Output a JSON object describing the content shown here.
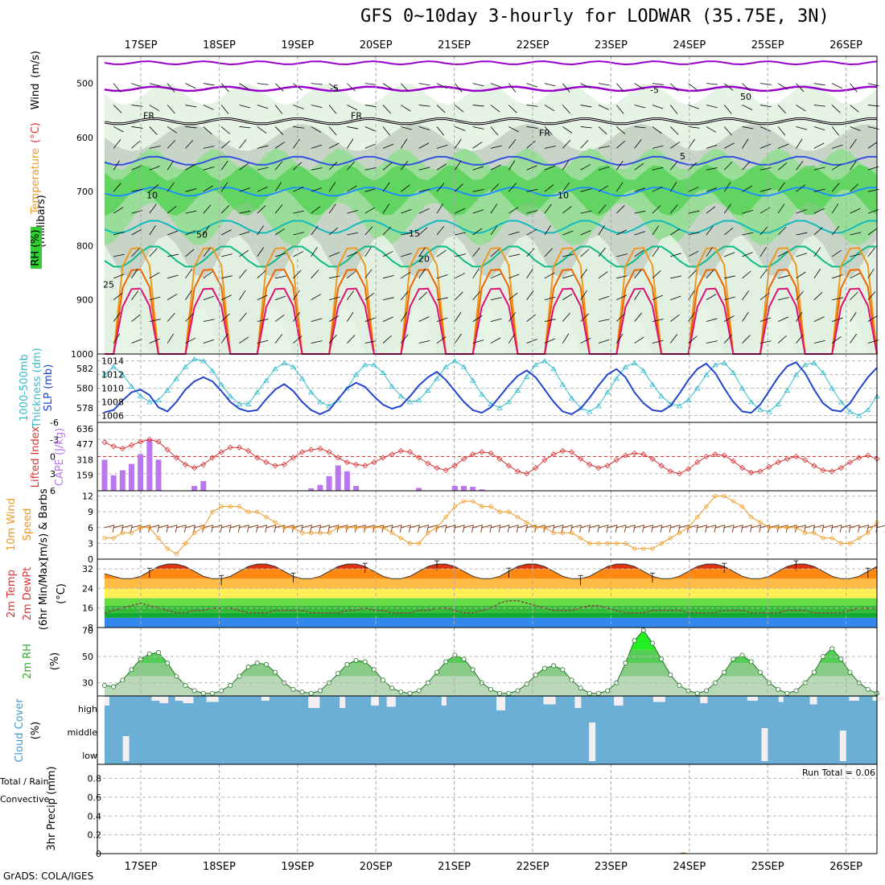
{
  "title": "GFS 0~10day 3-hourly for LODWAR (35.75E, 3N)",
  "credit": "GrADS: COLA/IGES",
  "dates": [
    "17SEP",
    "18SEP",
    "19SEP",
    "20SEP",
    "21SEP",
    "22SEP",
    "23SEP",
    "24SEP",
    "25SEP",
    "26SEP"
  ],
  "colors": {
    "rh_dark": "#33cc33",
    "rh_mid": "#99dd99",
    "rh_light": "#e6f4e6",
    "rh_grey": "#c8d4c8",
    "temp_neg": "#9900cc",
    "temp_5": "#3355dd",
    "temp_10": "#1e90ff",
    "temp_15": "#11bbbb",
    "temp_20": "#11bb88",
    "temp_25": "#ee9922",
    "temp_30": "#ee6600",
    "temp_35": "#dd1177",
    "slp": "#2244cc",
    "thickness": "#33bbcc",
    "li": "#dd3333",
    "cape": "#bb77ee",
    "wind": "#ee9922",
    "barb": "#884422",
    "cloud": "#6baed6",
    "rain": "#33cc33",
    "conv": "#dd3333"
  },
  "chart_data": [
    {
      "type": "heatmap",
      "panel": "upper-air",
      "caption_parts": [
        "RH (%)",
        "Temperature",
        "(°C)",
        "Wind",
        "(m/s)"
      ],
      "ylabel": "(millibars)",
      "ylim": [
        1000,
        450
      ],
      "yticks": [
        "500",
        "600",
        "700",
        "800",
        "900",
        "1000"
      ],
      "contour_labels": [
        "-5",
        "FR",
        "5",
        "10",
        "15",
        "20",
        "25",
        "50"
      ],
      "levels": {
        "minus5": 510,
        "freezing": 570,
        "t5": 643,
        "t10": 700,
        "t15": 765,
        "t20": 820,
        "t25_day": 855
      }
    },
    {
      "type": "line",
      "panel": "thickness-slp",
      "caption_left": "1000-500mb Thickness (dm)",
      "caption_right": "SLP (mb)",
      "left_ticks": [
        "582",
        "580",
        "578"
      ],
      "right_ticks": [
        "1014",
        "1012",
        "1010",
        "1008",
        "1006"
      ],
      "series": [
        {
          "name": "SLP (mb)",
          "values": [
            1006.5,
            1006.8,
            1008.2,
            1009.4,
            1009.8,
            1009.0,
            1007.2,
            1006.6,
            1008.0,
            1009.8,
            1011.0,
            1011.6,
            1011.0,
            1009.6,
            1008.0,
            1007.0,
            1006.6,
            1006.8,
            1008.4,
            1009.8,
            1010.6,
            1009.6,
            1008.0,
            1006.8,
            1006.2,
            1006.8,
            1008.4,
            1010.0,
            1010.8,
            1010.2,
            1008.8,
            1007.6,
            1007.0,
            1007.4,
            1008.8,
            1010.4,
            1011.6,
            1012.4,
            1011.2,
            1009.6,
            1008.0,
            1006.8,
            1006.4,
            1007.2,
            1008.8,
            1010.4,
            1011.8,
            1012.6,
            1011.6,
            1009.8,
            1008.0,
            1006.6,
            1006.2,
            1007.0,
            1008.6,
            1010.4,
            1012.0,
            1012.8,
            1011.6,
            1009.4,
            1007.8,
            1006.8,
            1006.6,
            1007.4,
            1009.2,
            1011.2,
            1012.8,
            1013.6,
            1012.2,
            1010.0,
            1008.0,
            1006.6,
            1006.4,
            1007.6,
            1009.6,
            1011.6,
            1013.2,
            1013.8,
            1012.2,
            1009.8,
            1007.8,
            1006.8,
            1006.6,
            1007.8,
            1009.8,
            1011.6,
            1013.0
          ]
        },
        {
          "name": "Thickness (dm)",
          "values": [
            581.4,
            582.2,
            581.4,
            580.2,
            579.2,
            578.6,
            578.8,
            579.8,
            581.0,
            582.2,
            583.0,
            582.8,
            581.8,
            580.4,
            579.2,
            578.4,
            578.4,
            579.6,
            580.8,
            582.0,
            582.6,
            582.2,
            581.0,
            579.6,
            578.6,
            578.2,
            578.8,
            580.0,
            581.4,
            582.4,
            582.4,
            581.6,
            580.2,
            579.2,
            578.6,
            578.8,
            579.8,
            581.0,
            582.2,
            582.8,
            582.2,
            580.8,
            579.4,
            578.4,
            578.0,
            578.6,
            579.8,
            581.2,
            582.4,
            582.8,
            582.0,
            580.4,
            579.0,
            578.0,
            577.6,
            578.2,
            579.6,
            581.0,
            582.2,
            582.6,
            581.8,
            580.4,
            579.2,
            578.4,
            578.2,
            578.8,
            580.0,
            581.4,
            582.4,
            582.6,
            581.6,
            580.0,
            578.6,
            577.8,
            577.6,
            578.4,
            579.8,
            581.4,
            582.4,
            582.6,
            581.6,
            580.0,
            578.6,
            577.6,
            577.2,
            577.8,
            579.2
          ]
        }
      ]
    },
    {
      "type": "bar",
      "panel": "cape-li",
      "caption_left": "Lifted Index",
      "caption_right": "CAPE (J/kg)",
      "left_ticks": [
        "-6",
        "-3",
        "0",
        "3",
        "6"
      ],
      "right_ticks": [
        "636",
        "477",
        "318",
        "159"
      ],
      "series": [
        {
          "name": "CAPE (J/kg)",
          "values": [
            318,
            159,
            210,
            275,
            375,
            530,
            318,
            0,
            0,
            0,
            50,
            100,
            0,
            0,
            0,
            0,
            0,
            0,
            0,
            0,
            0,
            0,
            0,
            25,
            60,
            150,
            260,
            200,
            50,
            0,
            0,
            0,
            0,
            0,
            0,
            30,
            0,
            0,
            0,
            50,
            50,
            40,
            15,
            0,
            0,
            0,
            0,
            0,
            0,
            0,
            0,
            0,
            0,
            0,
            0,
            0,
            0,
            0,
            0,
            0,
            0,
            0,
            0,
            0,
            0,
            0,
            0,
            0,
            0,
            0,
            0,
            0,
            0,
            0,
            0,
            0,
            0,
            0,
            0,
            0,
            0,
            0,
            0,
            0,
            0,
            0,
            0
          ]
        },
        {
          "name": "Lifted Index",
          "values": [
            -2.5,
            -1.8,
            -1.4,
            -2.0,
            -2.6,
            -3.0,
            -2.6,
            -1.2,
            0.2,
            1.4,
            2.0,
            1.4,
            0.2,
            -0.8,
            -1.6,
            -1.6,
            -1.0,
            0.2,
            1.0,
            1.6,
            1.4,
            0.2,
            -0.8,
            -1.2,
            -1.4,
            -0.8,
            0.2,
            1.0,
            1.4,
            1.6,
            1.0,
            0.2,
            -0.4,
            -1.0,
            -0.8,
            0.2,
            1.2,
            2.0,
            2.4,
            1.6,
            0.4,
            -0.4,
            -0.8,
            -0.6,
            0.4,
            1.6,
            2.6,
            3.0,
            2.0,
            0.6,
            -0.4,
            -1.0,
            -0.8,
            0.4,
            1.4,
            2.0,
            1.6,
            0.6,
            -0.2,
            -0.6,
            -0.4,
            0.4,
            1.6,
            2.6,
            3.0,
            2.2,
            1.0,
            0.0,
            -0.4,
            -0.2,
            0.8,
            2.0,
            2.8,
            2.6,
            1.8,
            1.0,
            0.4,
            0.0,
            0.6,
            1.6,
            2.4,
            2.6,
            2.0,
            1.0,
            0.2,
            -0.2,
            0.4
          ]
        }
      ]
    },
    {
      "type": "line",
      "panel": "wind10m",
      "caption": [
        "10m Wind",
        "Speed",
        "(m/s) & Barbs"
      ],
      "yticks": [
        "12",
        "9",
        "6",
        "3",
        "0"
      ],
      "ylim": [
        0,
        13
      ],
      "series": [
        {
          "name": "10m Wind Speed",
          "values": [
            4,
            4,
            5,
            5,
            6,
            6,
            4,
            2,
            1,
            3,
            5,
            6,
            9,
            10,
            10,
            10,
            9,
            9,
            8,
            7,
            6,
            6,
            5,
            5,
            5,
            5,
            6,
            6,
            6,
            6,
            6,
            6,
            5,
            4,
            3,
            3,
            5,
            6,
            8,
            10,
            11,
            11,
            10,
            10,
            9,
            9,
            8,
            7,
            6,
            6,
            5,
            5,
            5,
            4,
            3,
            3,
            3,
            3,
            3,
            2,
            2,
            2,
            3,
            4,
            5,
            6,
            8,
            10,
            12,
            12,
            11,
            10,
            8,
            7,
            6,
            6,
            6,
            6,
            5,
            5,
            4,
            4,
            3,
            3,
            4,
            5,
            7
          ]
        }
      ]
    },
    {
      "type": "area",
      "panel": "temp2m",
      "caption": [
        "2m Temp",
        "2m DewPt",
        "(6hr Min/Max)"
      ],
      "yticks": [
        "32",
        "24",
        "16",
        "8"
      ],
      "ylim": [
        8,
        36
      ],
      "series": [
        {
          "name": "2m Temp",
          "values": [
            30,
            29,
            28,
            28,
            29,
            31,
            33,
            34,
            34,
            33,
            31,
            29,
            28,
            28,
            29,
            31,
            33,
            34,
            34,
            33,
            31,
            29,
            28,
            28,
            29,
            31,
            33,
            34,
            34,
            33,
            31,
            29,
            28,
            28,
            29,
            31,
            33,
            34,
            34,
            33,
            31,
            29,
            28,
            28,
            29,
            31,
            33,
            34,
            34,
            33,
            31,
            29,
            28,
            28,
            29,
            31,
            33,
            34,
            34,
            33,
            31,
            29,
            28,
            28,
            29,
            31,
            33,
            34,
            34,
            33,
            31,
            29,
            28,
            28,
            29,
            31,
            33,
            34,
            34,
            33,
            31,
            29,
            28,
            28,
            29,
            31,
            33
          ]
        },
        {
          "name": "2m DewPt",
          "values": [
            14,
            15,
            16,
            17,
            18,
            17,
            16,
            15,
            14,
            14,
            15,
            15,
            16,
            16,
            16,
            15,
            14,
            14,
            14,
            15,
            15,
            15,
            15,
            14,
            14,
            14,
            14,
            15,
            15,
            16,
            15,
            15,
            14,
            14,
            14,
            15,
            15,
            16,
            16,
            15,
            14,
            14,
            15,
            16,
            18,
            19,
            19,
            18,
            17,
            16,
            15,
            15,
            15,
            16,
            17,
            17,
            16,
            15,
            14,
            14,
            14,
            15,
            15,
            15,
            15,
            14,
            14,
            14,
            14,
            15,
            15,
            15,
            14,
            14,
            14,
            14,
            15,
            15,
            15,
            14,
            14,
            14,
            14,
            15,
            16,
            16,
            16
          ]
        }
      ]
    },
    {
      "type": "area",
      "panel": "rh2m",
      "caption": "2m RH",
      "unit": "(%)",
      "yticks": [
        "70",
        "50",
        "30"
      ],
      "ylim": [
        20,
        72
      ],
      "series": [
        {
          "name": "2m RH",
          "values": [
            28,
            27,
            32,
            40,
            48,
            52,
            53,
            45,
            35,
            28,
            24,
            22,
            22,
            24,
            28,
            35,
            42,
            45,
            44,
            38,
            30,
            25,
            23,
            22,
            24,
            30,
            37,
            44,
            47,
            46,
            40,
            32,
            26,
            23,
            22,
            24,
            30,
            38,
            46,
            51,
            48,
            40,
            30,
            25,
            22,
            22,
            24,
            29,
            36,
            41,
            43,
            40,
            32,
            26,
            22,
            22,
            24,
            30,
            45,
            62,
            70,
            60,
            48,
            36,
            28,
            24,
            22,
            24,
            30,
            38,
            48,
            51,
            46,
            38,
            30,
            25,
            22,
            24,
            30,
            38,
            50,
            56,
            48,
            38,
            30,
            25,
            22
          ]
        }
      ]
    },
    {
      "type": "heatmap",
      "panel": "cloud",
      "caption": "Cloud Cover",
      "unit": "(%)",
      "rows": [
        "high",
        "middle",
        "low"
      ]
    },
    {
      "type": "bar",
      "panel": "precip",
      "caption_parts": [
        "Total / Rain",
        "Convective"
      ],
      "ylabel": "3hr Precip (mm)",
      "yticks": [
        "0.8",
        "0.6",
        "0.4",
        "0.2",
        "0"
      ],
      "ylim": [
        0,
        0.95
      ],
      "run_total": "Run Total = 0.06",
      "series": [
        {
          "name": "Total / Rain",
          "values": []
        }
      ]
    }
  ]
}
